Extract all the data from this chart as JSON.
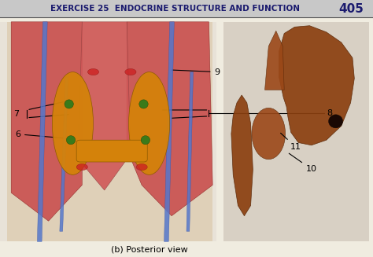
{
  "title_text": "EXERCISE 25  ENDOCRINE STRUCTURE AND FUNCTION",
  "page_num": "405",
  "caption": "(b) Posterior view",
  "bg_color": "#f0ece0",
  "header_bg": "#c8c8c8",
  "title_color": "#1a1a6e",
  "title_fontsize": 7.5,
  "page_num_color": "#1a1a6e",
  "page_num_fontsize": 11,
  "caption_fontsize": 8,
  "label_fontsize": 8,
  "label_color": "#000000"
}
